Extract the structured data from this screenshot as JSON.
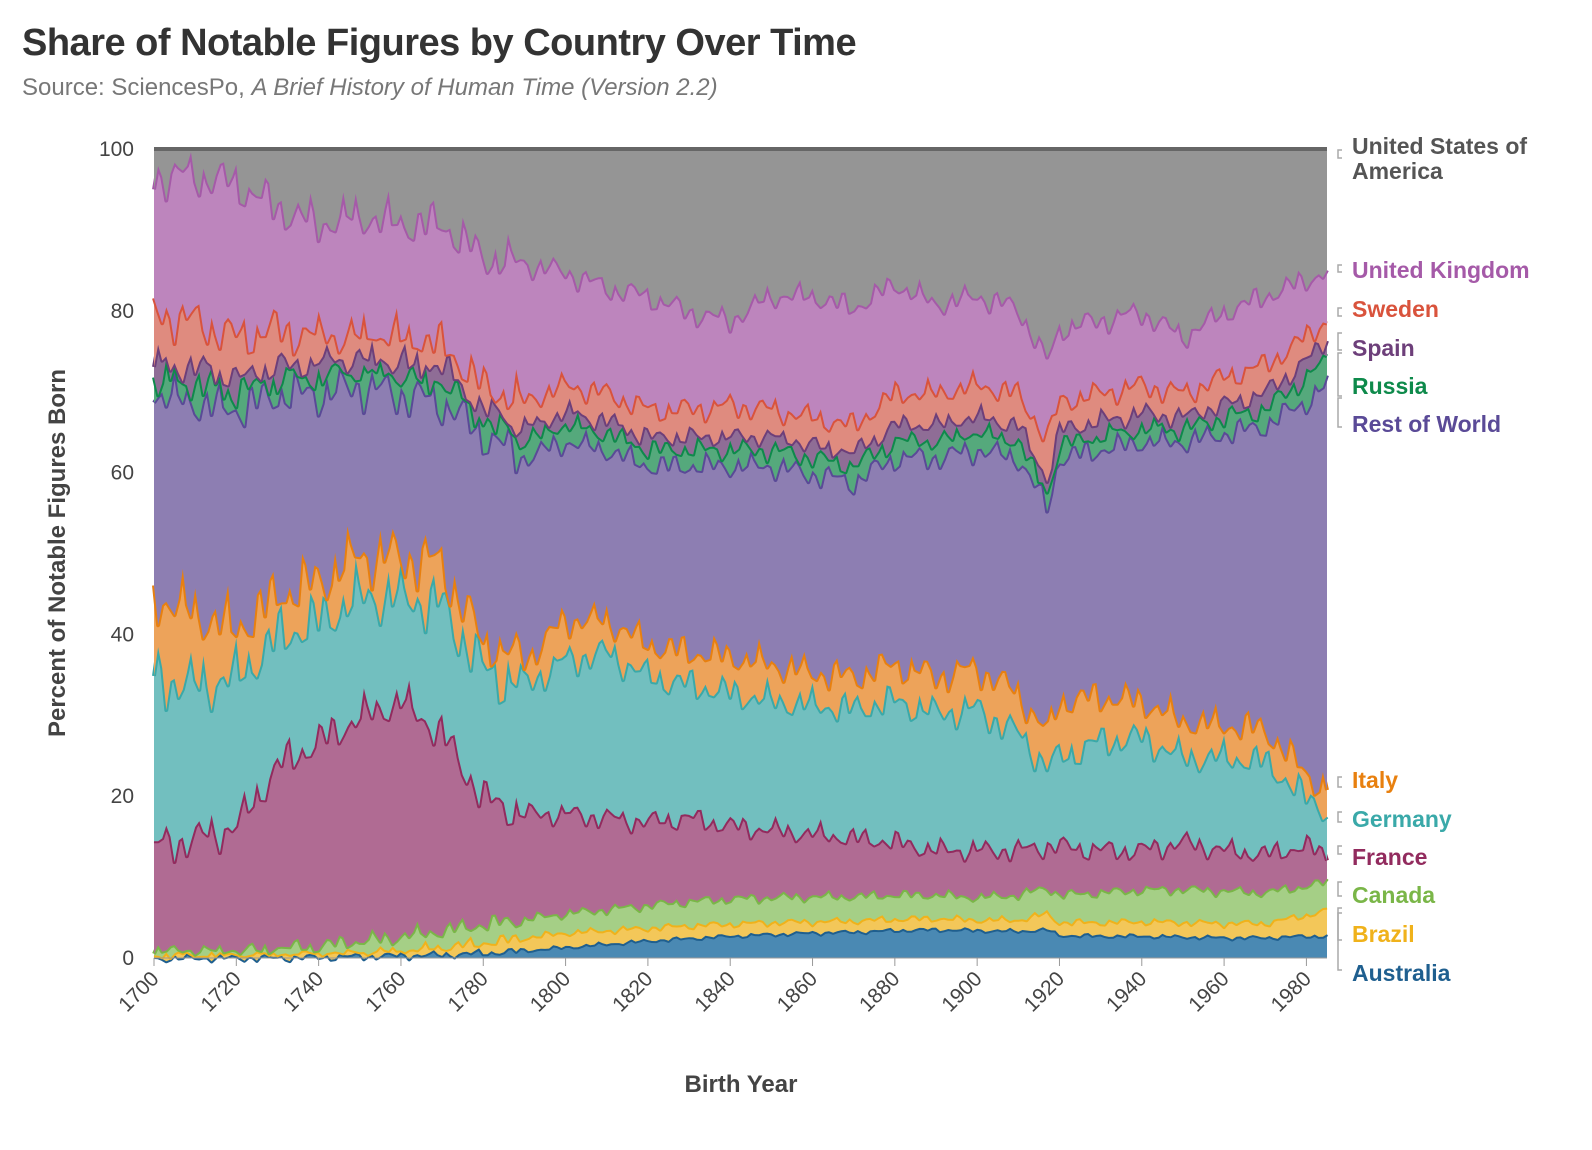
{
  "title": "Share of Notable Figures by Country Over Time",
  "subtitle_prefix": "Source: SciencesPo, ",
  "subtitle_italic": "A Brief History of Human Time (Version 2.2)",
  "chart_data": {
    "type": "area",
    "stacked": true,
    "xlabel": "Birth Year",
    "ylabel": "Percent of Notable Figures Born",
    "xlim": [
      1700,
      1985
    ],
    "ylim": [
      0,
      100
    ],
    "x_ticks": [
      1700,
      1720,
      1740,
      1760,
      1780,
      1800,
      1820,
      1840,
      1860,
      1880,
      1900,
      1920,
      1940,
      1960,
      1980
    ],
    "y_ticks": [
      0,
      20,
      40,
      60,
      80,
      100
    ],
    "grid": true,
    "legend": "right, direct labels",
    "x": [
      1700,
      1710,
      1720,
      1730,
      1740,
      1750,
      1760,
      1770,
      1780,
      1790,
      1800,
      1810,
      1820,
      1830,
      1840,
      1850,
      1860,
      1870,
      1880,
      1890,
      1900,
      1910,
      1917,
      1920,
      1930,
      1940,
      1950,
      1960,
      1970,
      1980,
      1985
    ],
    "cumulative_tops": [
      {
        "name": "Australia",
        "color": "#1f5f8f",
        "fill": "#4a89b3",
        "values": [
          0.0,
          0.1,
          0.1,
          0.1,
          0.2,
          0.3,
          0.4,
          0.5,
          0.7,
          1.0,
          1.4,
          1.8,
          2.2,
          2.5,
          2.8,
          3.0,
          3.2,
          3.3,
          3.5,
          3.6,
          3.5,
          3.4,
          3.6,
          2.9,
          2.8,
          2.8,
          2.7,
          2.6,
          2.6,
          2.8,
          2.8
        ]
      },
      {
        "name": "Brazil",
        "color": "#f0b21b",
        "fill": "#f3c759",
        "values": [
          0.1,
          0.2,
          0.2,
          0.3,
          0.4,
          0.6,
          0.9,
          1.4,
          2.0,
          2.6,
          3.2,
          3.5,
          3.8,
          4.1,
          4.3,
          4.5,
          4.6,
          4.7,
          4.9,
          5.0,
          4.8,
          4.8,
          5.6,
          4.5,
          4.5,
          4.6,
          4.5,
          4.4,
          4.4,
          5.4,
          6.0
        ]
      },
      {
        "name": "Canada",
        "color": "#7ab648",
        "fill": "#a5cf86",
        "values": [
          0.8,
          0.9,
          0.9,
          1.2,
          1.6,
          2.2,
          2.8,
          3.5,
          4.3,
          4.9,
          5.6,
          6.1,
          6.6,
          7.1,
          7.4,
          7.6,
          7.7,
          7.7,
          7.9,
          7.9,
          7.6,
          7.9,
          8.8,
          7.9,
          8.2,
          8.5,
          8.6,
          8.4,
          8.2,
          9.0,
          9.5
        ]
      },
      {
        "name": "France",
        "color": "#922b5e",
        "fill": "#b06b93",
        "values": [
          14.0,
          15.0,
          16.5,
          24.0,
          27.0,
          30.0,
          32.0,
          28.0,
          20.0,
          18.0,
          18.0,
          17.5,
          17.0,
          17.5,
          16.5,
          16.0,
          15.5,
          15.0,
          14.5,
          13.5,
          13.5,
          13.5,
          14.0,
          14.0,
          13.5,
          13.5,
          14.5,
          13.5,
          13.0,
          14.0,
          13.0
        ]
      },
      {
        "name": "Germany",
        "color": "#3aa9a9",
        "fill": "#72bfbf",
        "values": [
          35.0,
          34.0,
          35.0,
          40.0,
          42.0,
          45.0,
          45.0,
          44.0,
          36.0,
          34.0,
          37.0,
          38.0,
          35.0,
          34.0,
          33.0,
          32.0,
          31.5,
          31.0,
          32.0,
          30.5,
          31.0,
          28.0,
          24.0,
          25.0,
          27.0,
          27.5,
          25.0,
          25.0,
          24.5,
          20.0,
          18.5
        ]
      },
      {
        "name": "Italy",
        "color": "#e8800f",
        "fill": "#eda35a",
        "values": [
          45.0,
          43.0,
          41.0,
          45.0,
          47.0,
          50.0,
          50.0,
          49.0,
          39.0,
          37.0,
          42.0,
          42.0,
          39.0,
          38.0,
          37.5,
          36.5,
          35.5,
          35.0,
          36.5,
          35.0,
          36.0,
          33.0,
          28.0,
          32.0,
          32.5,
          32.0,
          29.5,
          29.0,
          28.5,
          23.0,
          21.0
        ]
      },
      {
        "name": "Rest of World",
        "color": "#5a4a97",
        "fill": "#8d7eb2",
        "values": [
          70.0,
          69.0,
          68.0,
          70.0,
          70.0,
          71.0,
          70.0,
          69.0,
          65.0,
          62.0,
          64.0,
          63.0,
          61.0,
          61.0,
          61.0,
          61.0,
          60.0,
          59.0,
          62.0,
          62.0,
          63.0,
          62.0,
          56.0,
          62.0,
          63.0,
          64.0,
          64.0,
          65.0,
          66.0,
          69.0,
          71.0
        ]
      },
      {
        "name": "Russia",
        "color": "#0e8a4b",
        "fill": "#55a97c",
        "values": [
          71.0,
          71.0,
          70.0,
          71.0,
          71.5,
          72.0,
          71.5,
          71.0,
          66.0,
          64.0,
          66.0,
          65.0,
          63.0,
          63.0,
          63.0,
          63.0,
          62.0,
          61.0,
          64.0,
          64.0,
          65.0,
          64.0,
          57.5,
          63.5,
          64.5,
          65.5,
          65.5,
          67.0,
          68.0,
          72.0,
          74.0
        ]
      },
      {
        "name": "Spain",
        "color": "#6d3f7a",
        "fill": "#8f6d96",
        "values": [
          73.0,
          73.0,
          71.5,
          73.0,
          73.5,
          74.0,
          73.5,
          73.0,
          67.5,
          65.5,
          67.5,
          66.5,
          64.5,
          64.5,
          64.5,
          64.5,
          63.5,
          62.5,
          66.0,
          66.0,
          67.0,
          66.0,
          59.5,
          65.5,
          66.5,
          67.5,
          67.0,
          68.5,
          70.0,
          74.0,
          76.5
        ]
      },
      {
        "name": "Sweden",
        "color": "#d9533c",
        "fill": "#df8b7f",
        "values": [
          80.0,
          79.0,
          77.0,
          78.0,
          77.0,
          77.0,
          77.0,
          76.0,
          71.0,
          69.0,
          71.0,
          70.0,
          68.0,
          68.0,
          68.5,
          68.0,
          67.0,
          66.0,
          70.0,
          70.0,
          71.0,
          70.0,
          64.5,
          69.0,
          70.0,
          71.0,
          70.0,
          72.0,
          73.5,
          77.0,
          79.0
        ]
      },
      {
        "name": "United Kingdom",
        "color": "#a55aa8",
        "fill": "#bd85bd",
        "values": [
          97.0,
          97.0,
          96.0,
          93.0,
          91.0,
          92.0,
          91.0,
          91.0,
          87.0,
          86.0,
          85.0,
          83.0,
          82.0,
          80.0,
          79.0,
          82.0,
          82.0,
          80.5,
          83.5,
          81.0,
          82.0,
          80.5,
          74.0,
          78.0,
          79.0,
          80.0,
          77.0,
          80.0,
          82.0,
          84.0,
          85.0
        ]
      },
      {
        "name": "United States of America",
        "color": "#666666",
        "fill": "#959595",
        "values": [
          100,
          100,
          100,
          100,
          100,
          100,
          100,
          100,
          100,
          100,
          100,
          100,
          100,
          100,
          100,
          100,
          100,
          100,
          100,
          100,
          100,
          100,
          100,
          100,
          100,
          100,
          100,
          100,
          100,
          100,
          100
        ]
      }
    ],
    "labels": [
      {
        "name": "United States of America",
        "lines": [
          "United States of",
          "America"
        ],
        "color": "#555555"
      },
      {
        "name": "United Kingdom",
        "lines": [
          "United Kingdom"
        ],
        "color": "#a55aa8"
      },
      {
        "name": "Sweden",
        "lines": [
          "Sweden"
        ],
        "color": "#d9533c"
      },
      {
        "name": "Spain",
        "lines": [
          "Spain"
        ],
        "color": "#6d3f7a"
      },
      {
        "name": "Russia",
        "lines": [
          "Russia"
        ],
        "color": "#0e8a4b"
      },
      {
        "name": "Rest of World",
        "lines": [
          "Rest of World"
        ],
        "color": "#5a4a97"
      },
      {
        "name": "Italy",
        "lines": [
          "Italy"
        ],
        "color": "#e8800f"
      },
      {
        "name": "Germany",
        "lines": [
          "Germany"
        ],
        "color": "#3aa9a9"
      },
      {
        "name": "France",
        "lines": [
          "France"
        ],
        "color": "#922b5e"
      },
      {
        "name": "Canada",
        "lines": [
          "Canada"
        ],
        "color": "#7ab648"
      },
      {
        "name": "Brazil",
        "lines": [
          "Brazil"
        ],
        "color": "#f0b21b"
      },
      {
        "name": "Australia",
        "lines": [
          "Australia"
        ],
        "color": "#1f5f8f"
      }
    ]
  }
}
